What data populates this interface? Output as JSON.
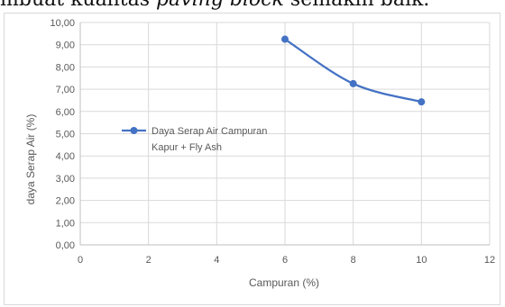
{
  "page_text": {
    "before": "mbuat kualitas ",
    "italic": "paving block",
    "after": " semakin baik."
  },
  "colors": {
    "series": "#4472c4",
    "grid": "#d9d9d9",
    "axis": "#bfbfbf",
    "text": "#595959",
    "frame": "#d9d9d9"
  },
  "chart_data": {
    "type": "line",
    "title": "",
    "xlabel": "Campuran (%)",
    "ylabel": "daya Serap Air (%)",
    "xlim": [
      0,
      12
    ],
    "ylim": [
      0,
      10
    ],
    "x_ticks": [
      "0",
      "2",
      "4",
      "6",
      "8",
      "10",
      "12"
    ],
    "y_ticks": [
      "0,00",
      "1,00",
      "2,00",
      "3,00",
      "4,00",
      "5,00",
      "6,00",
      "7,00",
      "8,00",
      "9,00",
      "10,00"
    ],
    "grid": true,
    "smooth": true,
    "legend_position": "center-left",
    "series": [
      {
        "name_lines": [
          "Daya Serap Air Campuran",
          "Kapur + Fly Ash"
        ],
        "x": [
          6,
          8,
          10
        ],
        "y": [
          9.25,
          7.25,
          6.43
        ]
      }
    ]
  }
}
